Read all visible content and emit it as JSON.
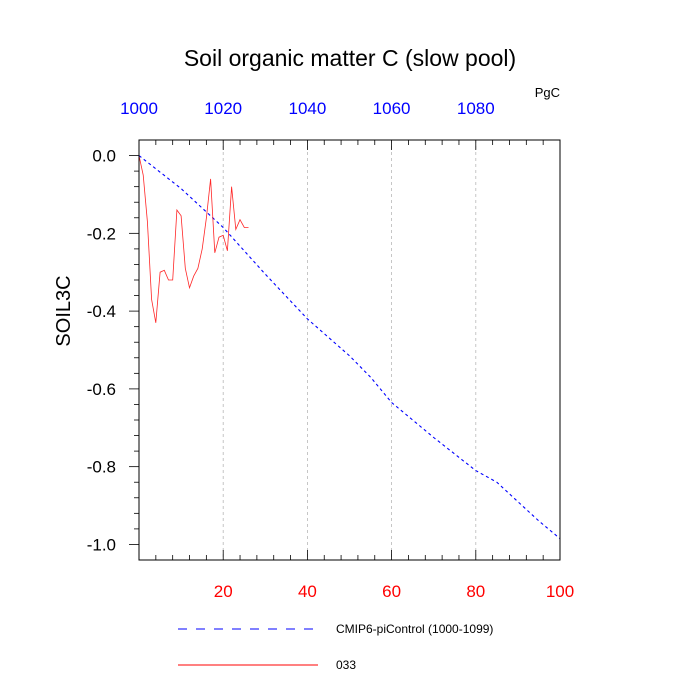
{
  "chart_data": {
    "type": "line",
    "title": "Soil organic matter C (slow pool)",
    "units": "PgC",
    "ylabel": "SOIL3C",
    "xlabel": "",
    "xlim": [
      0,
      100
    ],
    "ylim": [
      -1.04,
      0.04
    ],
    "x_ticks": [
      20,
      40,
      60,
      80,
      100
    ],
    "x_ticks_color": "#ff0000",
    "x2_ticks": [
      1000,
      1020,
      1040,
      1060,
      1080
    ],
    "x2_ticks_color": "#0000ff",
    "y_ticks": [
      0.0,
      -0.2,
      -0.4,
      -0.6,
      -0.8,
      -1.0
    ],
    "y_tick_labels": [
      "0.0",
      "-0.2",
      "-0.4",
      "-0.6",
      "-0.8",
      "-1.0"
    ],
    "grid": "vertical dashed",
    "legend_placement": "bottom",
    "series": [
      {
        "name": "CMIP6-piControl (1000-1099)",
        "color": "#0000ff",
        "dash": "dashed",
        "x": [
          0,
          10,
          20,
          30,
          40,
          50,
          55,
          60,
          70,
          80,
          85,
          90,
          95,
          100
        ],
        "y": [
          0.0,
          -0.085,
          -0.185,
          -0.305,
          -0.42,
          -0.515,
          -0.57,
          -0.635,
          -0.725,
          -0.81,
          -0.84,
          -0.89,
          -0.94,
          -0.985
        ]
      },
      {
        "name": "033",
        "color": "#ff0000",
        "dash": "solid",
        "x": [
          0,
          1,
          2,
          3,
          4,
          5,
          6,
          7,
          8,
          9,
          10,
          11,
          12,
          13,
          14,
          15,
          16,
          17,
          18,
          19,
          20,
          21,
          22,
          23,
          24,
          25,
          26
        ],
        "y": [
          0.0,
          -0.05,
          -0.17,
          -0.37,
          -0.43,
          -0.3,
          -0.295,
          -0.32,
          -0.32,
          -0.14,
          -0.155,
          -0.29,
          -0.34,
          -0.31,
          -0.29,
          -0.24,
          -0.16,
          -0.06,
          -0.25,
          -0.21,
          -0.205,
          -0.245,
          -0.08,
          -0.19,
          -0.165,
          -0.185,
          -0.185
        ]
      }
    ]
  }
}
